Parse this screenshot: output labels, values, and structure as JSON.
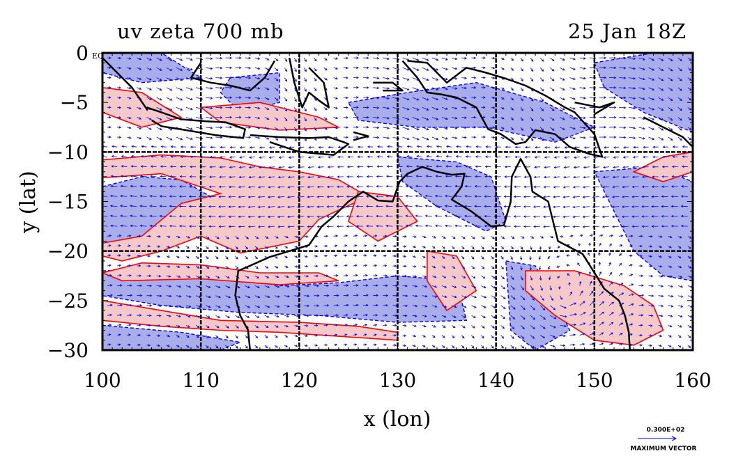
{
  "title_left": "uv zeta 700 mb",
  "title_right": "25 Jan 18Z",
  "xlabel": "x (lon)",
  "ylabel": "y (lat)",
  "x_ticks": [
    "100",
    "110",
    "120",
    "130",
    "140",
    "150",
    "160"
  ],
  "y_ticks": [
    "0",
    "−5",
    "−10",
    "−15",
    "−20",
    "−25",
    "−30"
  ],
  "eq_label": "EQ",
  "vector_key": {
    "magnitude": "0.300E+02",
    "label": "MAXIMUM VECTOR"
  },
  "colors": {
    "positive_fill": "#f6c9c9",
    "negative_fill": "#a9aeea",
    "positive_contour": "#ff0000",
    "negative_contour": "#0000ff",
    "vectors": "#0000ff",
    "coast": "#000000"
  },
  "chart_data": {
    "type": "map",
    "projection": "lat-lon",
    "field": "relative vorticity (zeta) with wind vectors (u,v)",
    "level": "700 mb",
    "valid_time": "25 Jan 18Z",
    "xlim": [
      100,
      160
    ],
    "ylim": [
      -30,
      0
    ],
    "grid_lon": [
      110,
      120,
      130,
      140,
      150
    ],
    "grid_lat": [
      -10,
      -20
    ],
    "grid": true,
    "vector_max": 30
  }
}
